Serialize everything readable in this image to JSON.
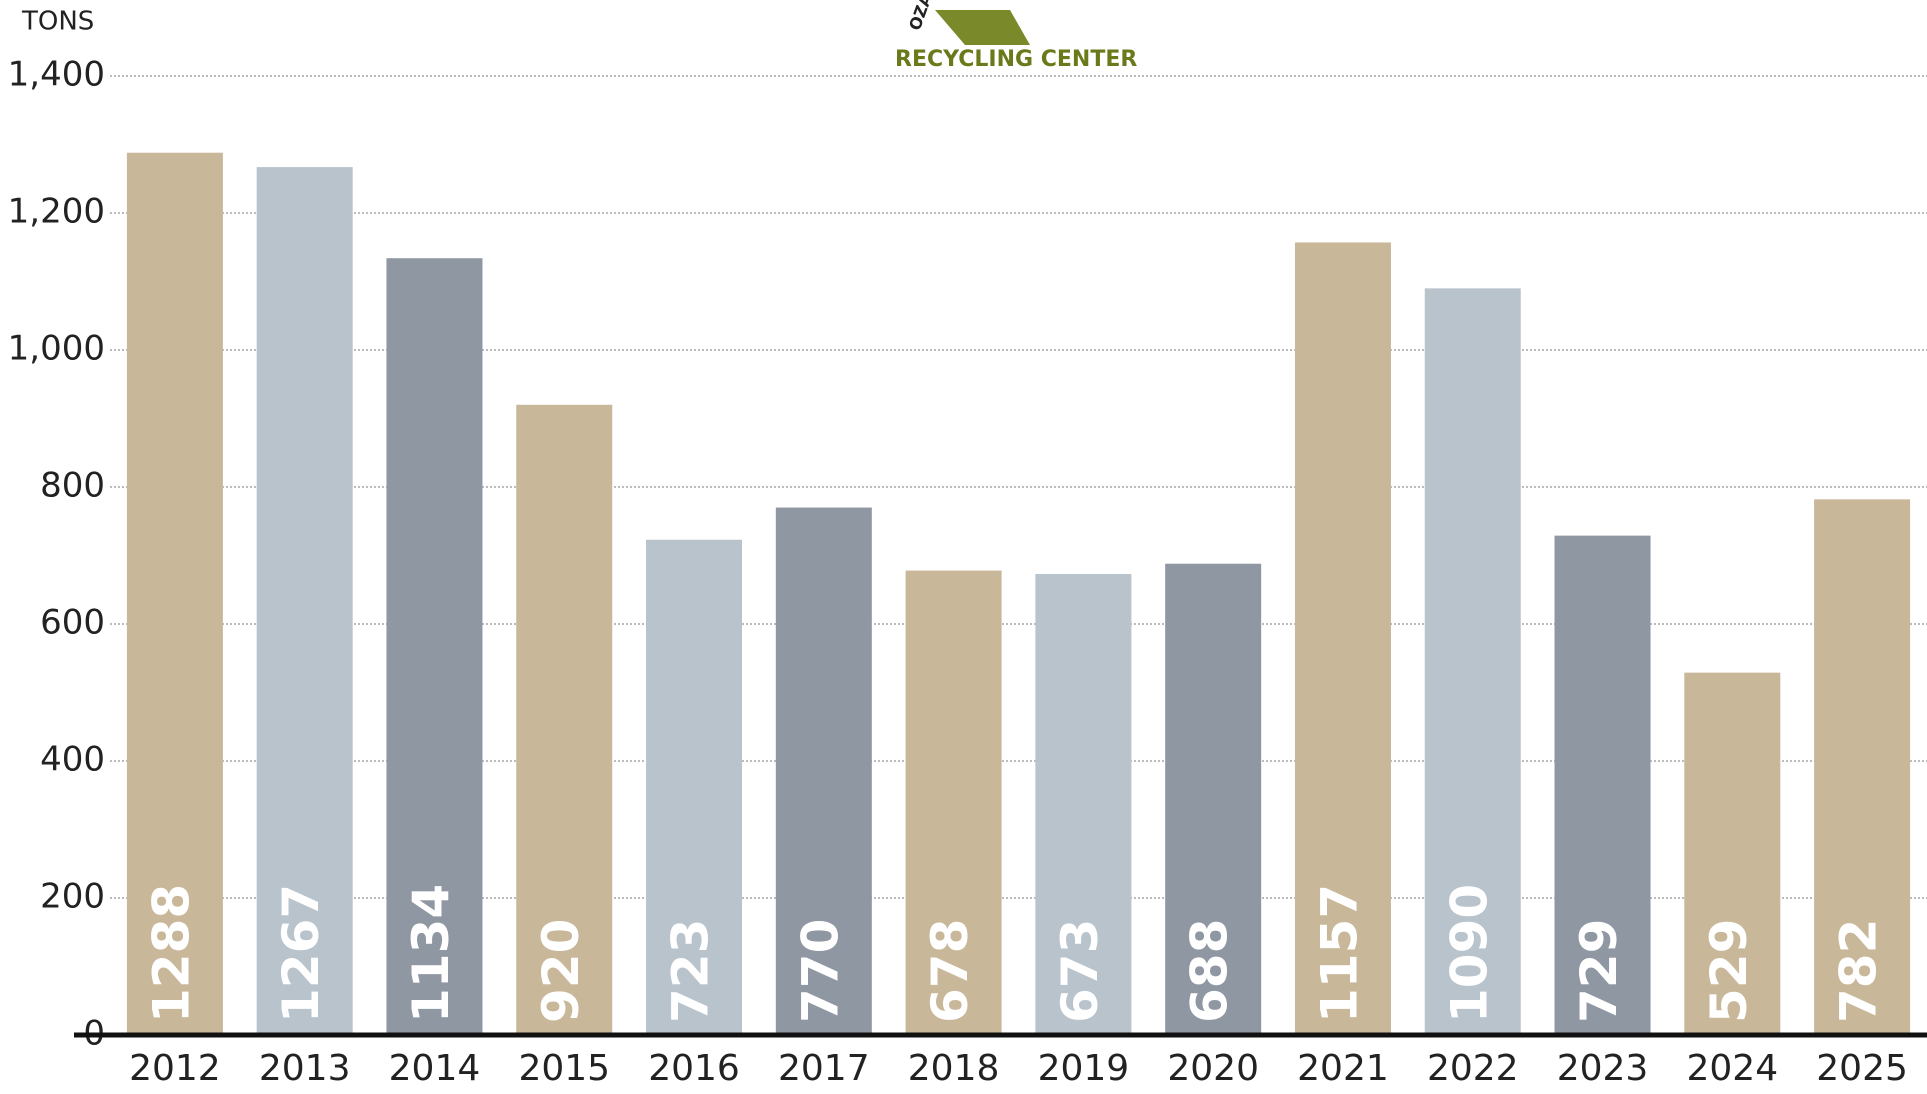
{
  "chart_data": {
    "type": "bar",
    "y_label": "TONS",
    "logo_lines": [
      "OZARK",
      "RECYCLING CENTER"
    ],
    "categories": [
      "2012",
      "2013",
      "2014",
      "2015",
      "2016",
      "2017",
      "2018",
      "2019",
      "2020",
      "2021",
      "2022",
      "2023",
      "2024",
      "2025"
    ],
    "values": [
      1288,
      1267,
      1134,
      920,
      723,
      770,
      678,
      673,
      688,
      1157,
      1090,
      729,
      529,
      782
    ],
    "colors": [
      "#c9b79a",
      "#b9c3cc",
      "#8f97a3",
      "#c9b79a",
      "#b9c3cc",
      "#8f97a3",
      "#c9b79a",
      "#b9c3cc",
      "#8f97a3",
      "#c9b79a",
      "#b9c3cc",
      "#8f97a3",
      "#c9b79a",
      "#c9b79a"
    ],
    "ylim": [
      0,
      1400
    ],
    "yticks": [
      0,
      200,
      400,
      600,
      800,
      {
        "value": 1000,
        "label": "1,000"
      },
      {
        "value": 1200,
        "label": "1,200"
      },
      {
        "value": 1400,
        "label": "1,400"
      }
    ],
    "grid": true
  }
}
